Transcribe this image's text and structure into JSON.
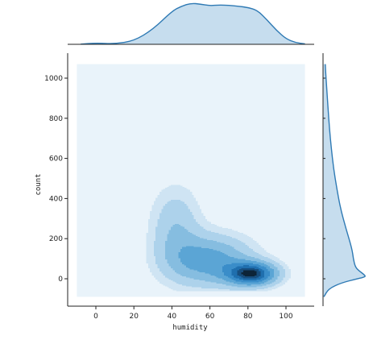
{
  "chart_data": {
    "type": "jointplot-kde",
    "title": "",
    "xlabel": "humidity",
    "ylabel": "count",
    "xlim": [
      -10,
      110
    ],
    "ylim": [
      -90,
      1070
    ],
    "xticks": [
      0,
      20,
      40,
      60,
      80,
      100
    ],
    "yticks": [
      0,
      200,
      400,
      600,
      800,
      1000
    ],
    "joint": {
      "kind": "filled-kde-contours",
      "levels": 8,
      "peak": {
        "humidity": 82,
        "count": 25
      },
      "extent": {
        "humidity_min": 24,
        "humidity_max": 100,
        "count_min": -10,
        "count_max": 570
      },
      "colors": [
        "#e9f3fa",
        "#cfe4f3",
        "#add2eb",
        "#86bde0",
        "#5ba5d5",
        "#3a8dc9",
        "#1f6fae",
        "#174e7e",
        "#0d2438"
      ]
    },
    "marginal_x": {
      "kind": "kde",
      "x": [
        -8,
        0,
        10,
        20,
        30,
        40,
        45,
        50,
        55,
        60,
        65,
        70,
        75,
        80,
        85,
        90,
        95,
        100,
        105,
        110
      ],
      "density": [
        0.003,
        0.03,
        0.01,
        0.08,
        0.35,
        0.78,
        0.9,
        0.97,
        0.95,
        0.91,
        0.93,
        0.92,
        0.9,
        0.87,
        0.8,
        0.58,
        0.33,
        0.13,
        0.04,
        0.01
      ]
    },
    "marginal_y": {
      "kind": "kde",
      "y": [
        1070,
        1020,
        950,
        850,
        750,
        650,
        550,
        450,
        350,
        250,
        150,
        100,
        60,
        40,
        20,
        10,
        0,
        -20,
        -50,
        -90
      ],
      "density": [
        0.05,
        0.06,
        0.08,
        0.11,
        0.14,
        0.18,
        0.23,
        0.3,
        0.38,
        0.5,
        0.63,
        0.66,
        0.7,
        0.78,
        0.9,
        0.93,
        0.75,
        0.4,
        0.12,
        0.02
      ]
    },
    "colors": {
      "fill": "#c6ddee",
      "stroke": "#2f7ab4",
      "background_fill": "#e9f3fa"
    }
  }
}
